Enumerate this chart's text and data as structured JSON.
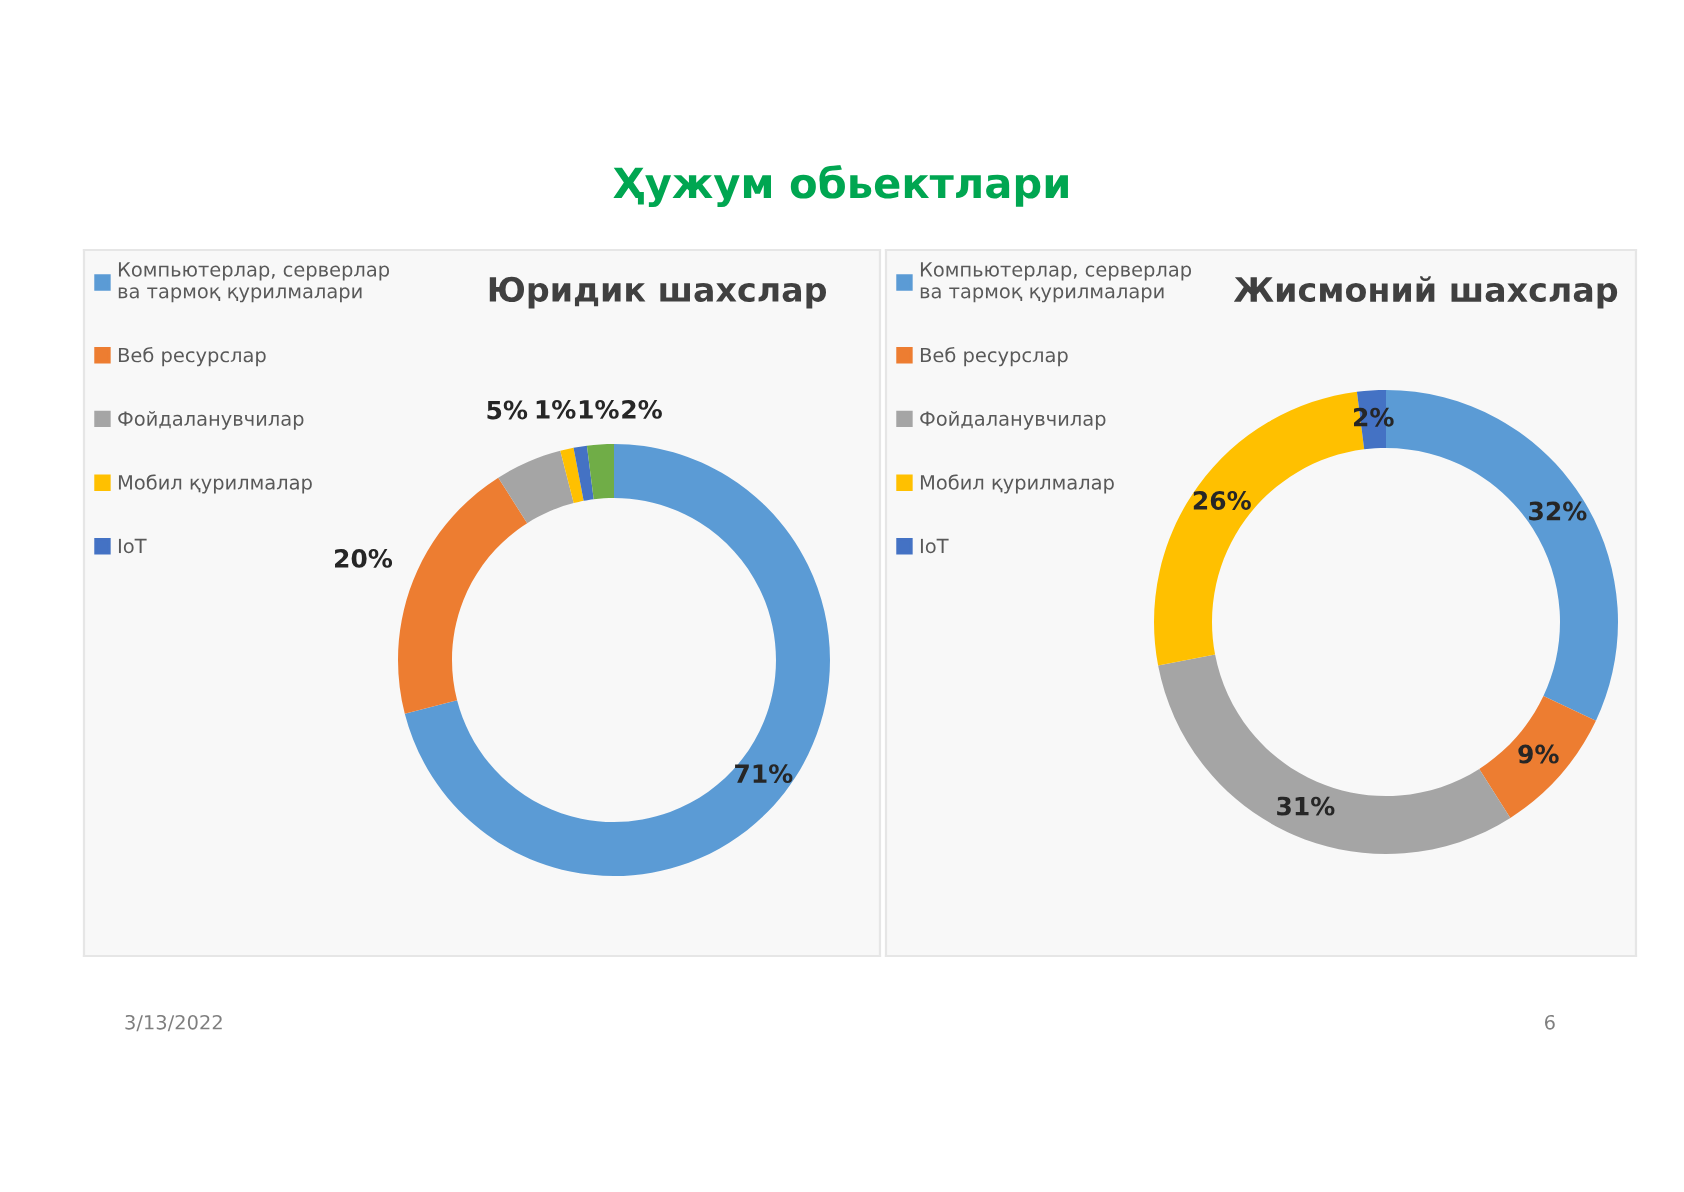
{
  "chart_data": [
    {
      "type": "donut",
      "title": "Юридик шахслар",
      "categories": [
        "Компьютерлар, серверлар ва тармоқ қурилмалари",
        "Веб ресурслар",
        "Фойдаланувчилар",
        "Мобил қурилмалар",
        "IoT",
        null
      ],
      "values": [
        71,
        20,
        5,
        1,
        1,
        2
      ],
      "colors": [
        "#5b9bd5",
        "#ed7d31",
        "#a5a5a5",
        "#ffc000",
        "#4472c4",
        "#70ad47"
      ],
      "value_labels": [
        "71%",
        "20%",
        "5%",
        "1%",
        "1%",
        "2%"
      ],
      "legend": "top left",
      "annotations": [
        "Ҳужум обьектлари",
        "3/13/2022",
        "6"
      ]
    },
    {
      "type": "donut",
      "title": "Жисмоний шахслар",
      "categories": [
        "Компьютерлар, серверлар ва тармоқ қурилмалари",
        "Веб ресурслар",
        "Фойдаланувчилар",
        "Мобил қурилмалар",
        "IoT"
      ],
      "values": [
        32,
        9,
        31,
        26,
        2
      ],
      "colors": [
        "#5b9bd5",
        "#ed7d31",
        "#a5a5a5",
        "#ffc000",
        "#4472c4"
      ],
      "value_labels": [
        "32%",
        "9%",
        "31%",
        "26%",
        "2%"
      ],
      "legend": "top left"
    }
  ]
}
